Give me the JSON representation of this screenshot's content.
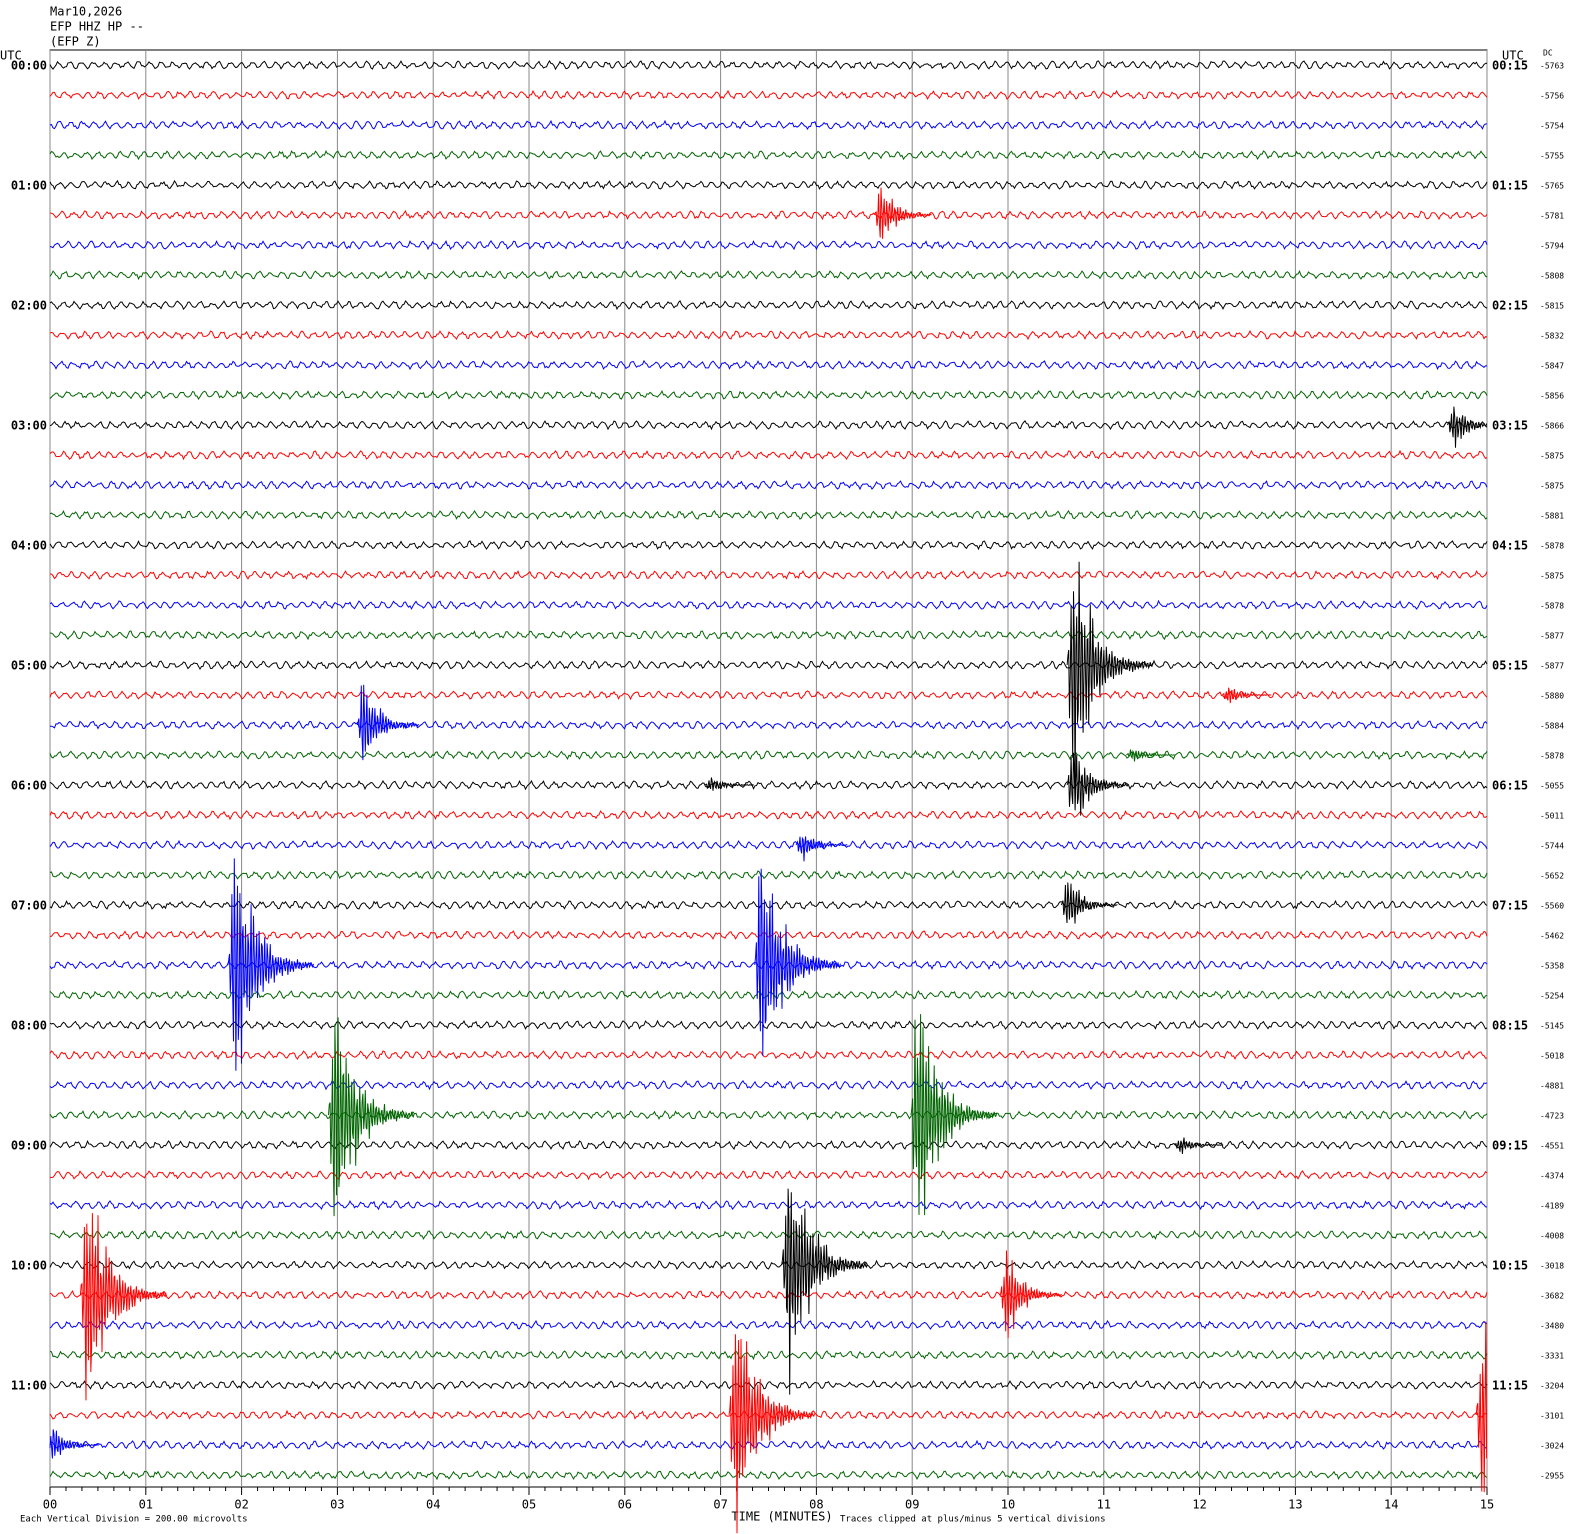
{
  "chart_data": {
    "type": "helicorder",
    "header": [
      "Mar10,2026",
      "EFP HHZ HP --",
      "(EFP Z)"
    ],
    "left_axis_title": "UTC",
    "right_axis_title": "UTC",
    "dc_title": "DC",
    "xlabel": "TIME (MINUTES)",
    "scale_note": "Each Vertical Division =  200.00 microvolts",
    "clip_note": "Traces clipped at plus/minus 5 vertical divisions",
    "clip": 5,
    "xlim": [
      0,
      15
    ],
    "xticks": [
      {
        "value": 0,
        "label": "00"
      },
      {
        "value": 1,
        "label": "01"
      },
      {
        "value": 2,
        "label": "02"
      },
      {
        "value": 3,
        "label": "03"
      },
      {
        "value": 4,
        "label": "04"
      },
      {
        "value": 5,
        "label": "05"
      },
      {
        "value": 6,
        "label": "06"
      },
      {
        "value": 7,
        "label": "07"
      },
      {
        "value": 8,
        "label": "08"
      },
      {
        "value": 9,
        "label": "09"
      },
      {
        "value": 10,
        "label": "10"
      },
      {
        "value": 11,
        "label": "11"
      },
      {
        "value": 12,
        "label": "12"
      },
      {
        "value": 13,
        "label": "13"
      },
      {
        "value": 14,
        "label": "14"
      },
      {
        "value": 15,
        "label": "15"
      }
    ],
    "grid": true,
    "colors": [
      "#000000",
      "#ff0000",
      "#0000ff",
      "#006400"
    ],
    "left_labels": [
      "00:00",
      "01:00",
      "02:00",
      "03:00",
      "04:00",
      "05:00",
      "06:00",
      "07:00",
      "08:00",
      "09:00",
      "10:00",
      "11:00"
    ],
    "right_labels": [
      "00:15",
      "01:15",
      "02:15",
      "03:15",
      "04:15",
      "05:15",
      "06:15",
      "07:15",
      "08:15",
      "09:15",
      "10:15",
      "11:15"
    ],
    "dc_values": [
      -5763,
      -5756,
      -5754,
      -5755,
      -5765,
      -5781,
      -5794,
      -5808,
      -5815,
      -5832,
      -5847,
      -5856,
      -5866,
      -5875,
      -5875,
      -5881,
      -5878,
      -5875,
      -5878,
      -5877,
      -5877,
      -5880,
      -5884,
      -5878,
      -5055,
      -5011,
      -5744,
      -5652,
      -5560,
      -5462,
      -5358,
      -5254,
      -5145,
      -5018,
      -4881,
      -4723,
      -4551,
      -4374,
      -4189,
      -4008,
      -3018,
      -3682,
      -3480,
      -3331,
      -3204,
      -3101,
      -3024,
      -2955
    ],
    "events": [
      {
        "row": 5,
        "minute": 8.67,
        "amplitude": 1.4
      },
      {
        "row": 12,
        "minute": 14.65,
        "amplitude": 1.0
      },
      {
        "row": 20,
        "minute": 10.68,
        "amplitude": 5
      },
      {
        "row": 21,
        "minute": 12.3,
        "amplitude": 0.4
      },
      {
        "row": 22,
        "minute": 3.27,
        "amplitude": 2
      },
      {
        "row": 23,
        "minute": 11.3,
        "amplitude": 0.3
      },
      {
        "row": 24,
        "minute": 6.9,
        "amplitude": 0.4
      },
      {
        "row": 24,
        "minute": 10.68,
        "amplitude": 2
      },
      {
        "row": 26,
        "minute": 7.85,
        "amplitude": 0.7
      },
      {
        "row": 28,
        "minute": 10.62,
        "amplitude": 1.3
      },
      {
        "row": 30,
        "minute": 1.92,
        "amplitude": 5
      },
      {
        "row": 30,
        "minute": 7.42,
        "amplitude": 5
      },
      {
        "row": 35,
        "minute": 2.97,
        "amplitude": 5
      },
      {
        "row": 35,
        "minute": 9.05,
        "amplitude": 5
      },
      {
        "row": 36,
        "minute": 11.8,
        "amplitude": 0.4
      },
      {
        "row": 40,
        "minute": 7.7,
        "amplitude": 5
      },
      {
        "row": 41,
        "minute": 0.38,
        "amplitude": 5
      },
      {
        "row": 41,
        "minute": 9.98,
        "amplitude": 2
      },
      {
        "row": 45,
        "minute": 7.15,
        "amplitude": 5
      },
      {
        "row": 45,
        "minute": 14.95,
        "amplitude": 5
      },
      {
        "row": 46,
        "minute": 0.03,
        "amplitude": 0.8
      }
    ]
  }
}
